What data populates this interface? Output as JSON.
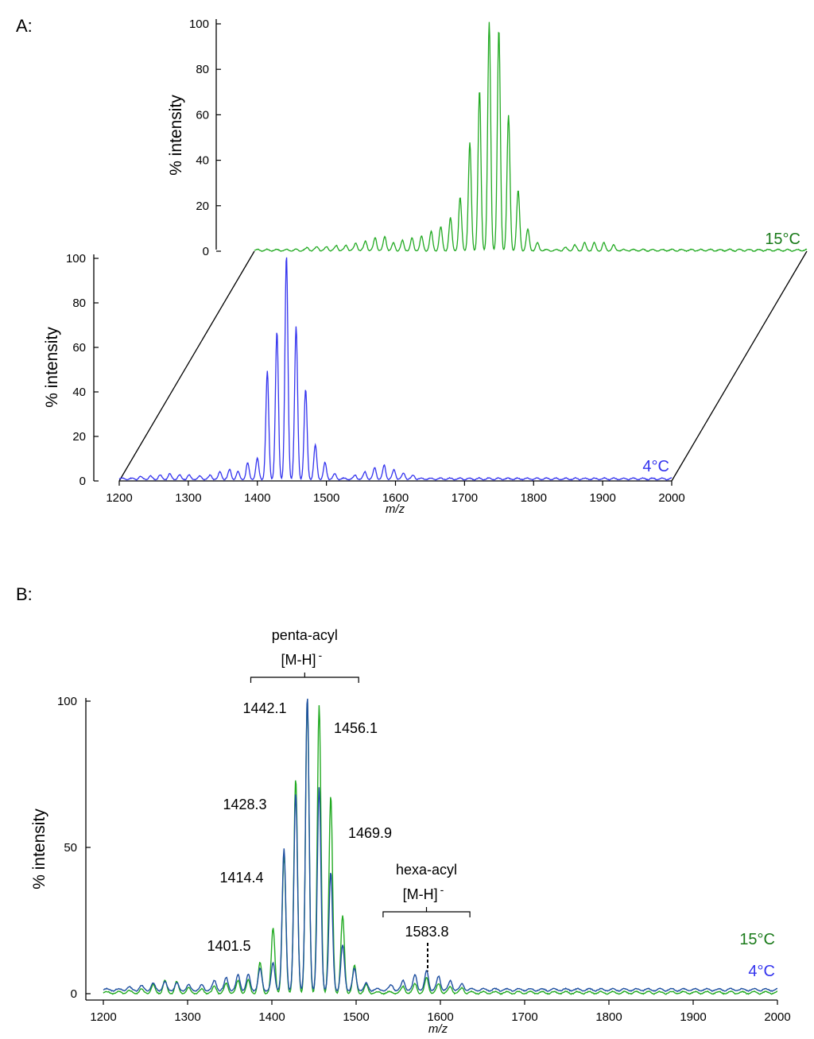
{
  "colors": {
    "green": "#22aa22",
    "blue": "#3333ee",
    "dark_green": "#1a7a1a",
    "black": "#000000",
    "overlap": "#1e4fa0"
  },
  "panel_labels": {
    "a": "A:",
    "b": "B:"
  },
  "chart_data": [
    {
      "type": "line",
      "id": "panel-a",
      "title": "",
      "xlabel": "m/z",
      "ylabel": "% intensity",
      "xlim": [
        1200,
        2000
      ],
      "ylim": [
        0,
        100
      ],
      "x_ticks": [
        1200,
        1300,
        1400,
        1500,
        1600,
        1700,
        1800,
        1900,
        2000
      ],
      "y_ticks": [
        0,
        20,
        40,
        60,
        80,
        100
      ],
      "projection": "stacked 3D offset",
      "series": [
        {
          "name": "15°C",
          "color": "#22aa22",
          "label": "15°C",
          "peaks": [
            [
              1277,
              1
            ],
            [
              1291,
              1.5
            ],
            [
              1305,
              1.5
            ],
            [
              1319,
              2
            ],
            [
              1333,
              2
            ],
            [
              1347,
              3
            ],
            [
              1361,
              4
            ],
            [
              1375,
              5.5
            ],
            [
              1389,
              6
            ],
            [
              1401.5,
              3
            ],
            [
              1414.4,
              4
            ],
            [
              1428.3,
              5
            ],
            [
              1442.1,
              6
            ],
            [
              1456.1,
              8
            ],
            [
              1469.9,
              10
            ],
            [
              1484,
              14
            ],
            [
              1498,
              23
            ],
            [
              1512,
              47
            ],
            [
              1526,
              70
            ],
            [
              1540,
              100
            ],
            [
              1554,
              97
            ],
            [
              1568,
              59
            ],
            [
              1582,
              26
            ],
            [
              1596,
              9
            ],
            [
              1610,
              3
            ],
            [
              1650,
              1
            ],
            [
              1664,
              2
            ],
            [
              1678,
              3
            ],
            [
              1692,
              3
            ],
            [
              1706,
              3
            ],
            [
              1720,
              2
            ]
          ]
        },
        {
          "name": "4°C",
          "color": "#3333ee",
          "label": "4°C",
          "peaks": [
            [
              1230,
              0.8
            ],
            [
              1245,
              1
            ],
            [
              1259,
              1.5
            ],
            [
              1273,
              2
            ],
            [
              1287,
              1.5
            ],
            [
              1301,
              1.5
            ],
            [
              1317,
              1
            ],
            [
              1332,
              1.5
            ],
            [
              1346,
              3
            ],
            [
              1360,
              4
            ],
            [
              1372,
              3
            ],
            [
              1386,
              7
            ],
            [
              1400,
              9
            ],
            [
              1414.4,
              48
            ],
            [
              1428.3,
              66
            ],
            [
              1442.1,
              100
            ],
            [
              1456.1,
              68
            ],
            [
              1469.9,
              40
            ],
            [
              1484,
              15
            ],
            [
              1498,
              7
            ],
            [
              1512,
              2
            ],
            [
              1542,
              1.5
            ],
            [
              1556,
              3
            ],
            [
              1570,
              5
            ],
            [
              1583.8,
              6
            ],
            [
              1598,
              4
            ],
            [
              1612,
              2.5
            ],
            [
              1626,
              1.5
            ]
          ]
        }
      ]
    },
    {
      "type": "line",
      "id": "panel-b",
      "title": "",
      "xlabel": "m/z",
      "ylabel": "% intensity",
      "xlim": [
        1200,
        2000
      ],
      "ylim": [
        0,
        100
      ],
      "x_ticks": [
        1200,
        1300,
        1400,
        1500,
        1600,
        1700,
        1800,
        1900,
        2000
      ],
      "y_ticks": [
        0,
        50,
        100
      ],
      "series": [
        {
          "name": "15°C",
          "color": "#22aa22",
          "label": "15°C",
          "peaks": [
            [
              1230,
              0.5
            ],
            [
              1245,
              1
            ],
            [
              1259,
              2.5
            ],
            [
              1273,
              4
            ],
            [
              1287,
              3.5
            ],
            [
              1301,
              1.5
            ],
            [
              1317,
              1
            ],
            [
              1332,
              2
            ],
            [
              1346,
              3
            ],
            [
              1360,
              4
            ],
            [
              1372,
              4
            ],
            [
              1386,
              10
            ],
            [
              1401.5,
              22
            ],
            [
              1414.4,
              47
            ],
            [
              1428.3,
              73
            ],
            [
              1442.1,
              100
            ],
            [
              1456.1,
              98
            ],
            [
              1469.9,
              67
            ],
            [
              1484,
              26
            ],
            [
              1498,
              9
            ],
            [
              1512,
              2.5
            ],
            [
              1556,
              2
            ],
            [
              1570,
              3
            ],
            [
              1583.8,
              5
            ],
            [
              1598,
              3
            ],
            [
              1612,
              2
            ],
            [
              1626,
              1.5
            ]
          ]
        },
        {
          "name": "4°C",
          "color": "#3333ee",
          "label": "4°C",
          "peaks": [
            [
              1230,
              0.8
            ],
            [
              1245,
              1.2
            ],
            [
              1259,
              2
            ],
            [
              1273,
              2.5
            ],
            [
              1287,
              2
            ],
            [
              1301,
              1.5
            ],
            [
              1317,
              1.5
            ],
            [
              1332,
              3
            ],
            [
              1346,
              4
            ],
            [
              1360,
              5
            ],
            [
              1372,
              5
            ],
            [
              1386,
              7
            ],
            [
              1401.5,
              9
            ],
            [
              1414.4,
              48
            ],
            [
              1428.3,
              67
            ],
            [
              1442.1,
              100
            ],
            [
              1456.1,
              69
            ],
            [
              1469.9,
              40
            ],
            [
              1484,
              15
            ],
            [
              1498,
              7
            ],
            [
              1512,
              2
            ],
            [
              1542,
              1.5
            ],
            [
              1556,
              3
            ],
            [
              1570,
              5
            ],
            [
              1583.8,
              6.5
            ],
            [
              1598,
              4.5
            ],
            [
              1612,
              3
            ],
            [
              1626,
              2
            ]
          ]
        }
      ],
      "peak_labels": [
        {
          "mz": 1442.1,
          "text": "1442.1"
        },
        {
          "mz": 1456.1,
          "text": "1456.1"
        },
        {
          "mz": 1428.3,
          "text": "1428.3"
        },
        {
          "mz": 1469.9,
          "text": "1469.9"
        },
        {
          "mz": 1414.4,
          "text": "1414.4"
        },
        {
          "mz": 1401.5,
          "text": "1401.5"
        },
        {
          "mz": 1583.8,
          "text": "1583.8"
        }
      ],
      "annotations": [
        {
          "name": "penta-acyl",
          "line1": "penta-acyl",
          "line2": "[M-H]",
          "charge": "-",
          "range": [
            1375,
            1503
          ]
        },
        {
          "name": "hexa-acyl",
          "line1": "hexa-acyl",
          "line2": "[M-H]",
          "charge": "-",
          "range": [
            1532,
            1635
          ]
        }
      ]
    }
  ]
}
